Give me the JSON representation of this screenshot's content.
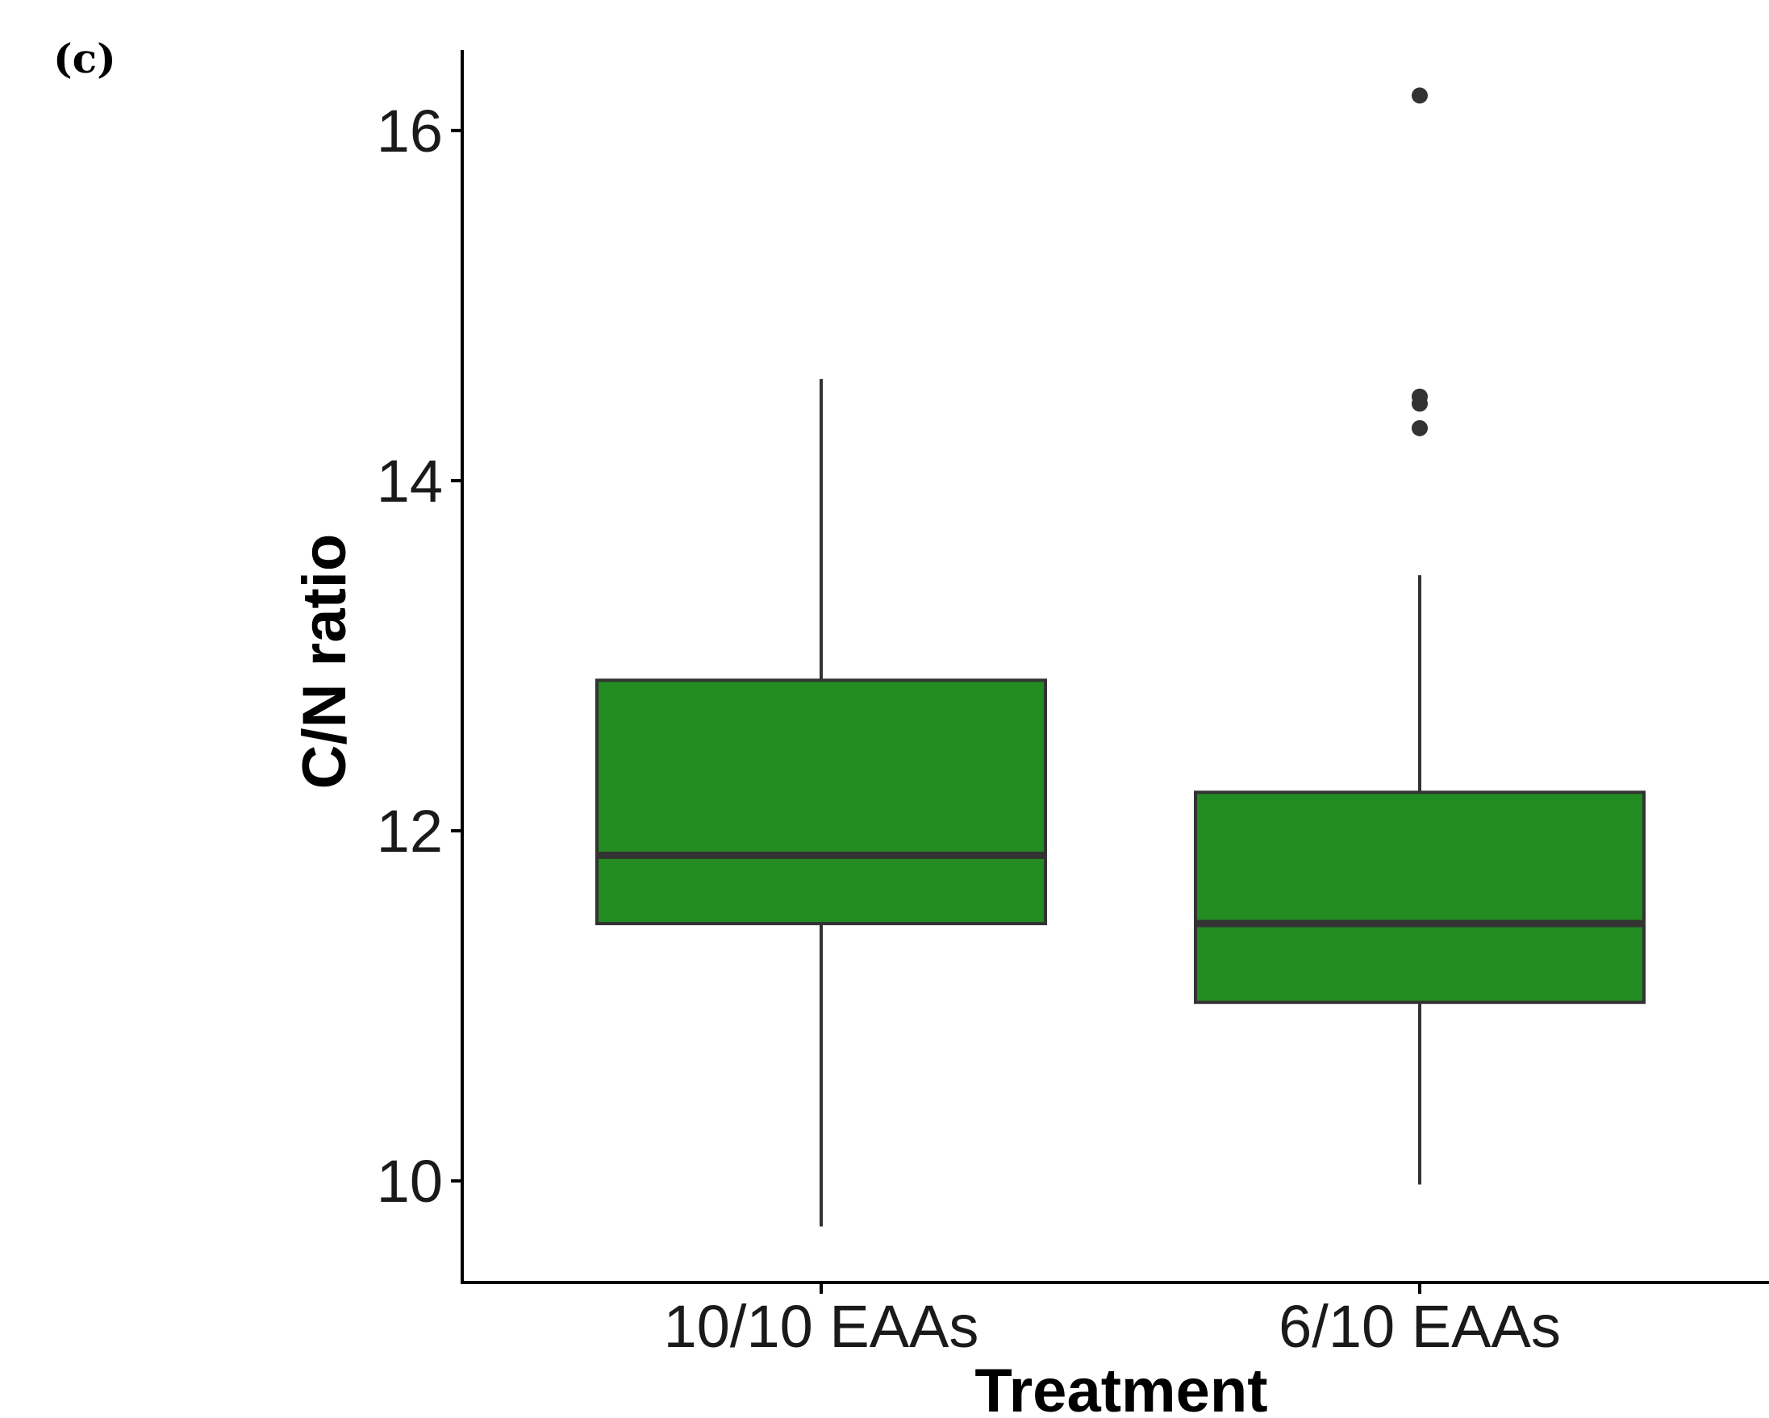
{
  "panel_label": "(c)",
  "chart_data": {
    "type": "boxplot",
    "xlabel": "Treatment",
    "ylabel": "C/N ratio",
    "ylim": [
      9.42,
      16.46
    ],
    "yticks": [
      10,
      12,
      14,
      16
    ],
    "ytick_labels": [
      "10",
      "12",
      "14",
      "16"
    ],
    "categories": [
      "10/10 EAAs",
      "6/10 EAAs"
    ],
    "boxes": [
      {
        "category": "10/10 EAAs",
        "whisker_low": 9.74,
        "q1": 11.47,
        "median": 11.86,
        "q3": 12.86,
        "whisker_high": 14.58,
        "outliers": []
      },
      {
        "category": "6/10 EAAs",
        "whisker_low": 9.98,
        "q1": 11.02,
        "median": 11.47,
        "q3": 12.22,
        "whisker_high": 13.46,
        "outliers": [
          16.2,
          14.48,
          14.44,
          14.3
        ]
      }
    ],
    "box_color": "#228b22",
    "line_color": "#333333",
    "grid": false,
    "legend": "none"
  }
}
